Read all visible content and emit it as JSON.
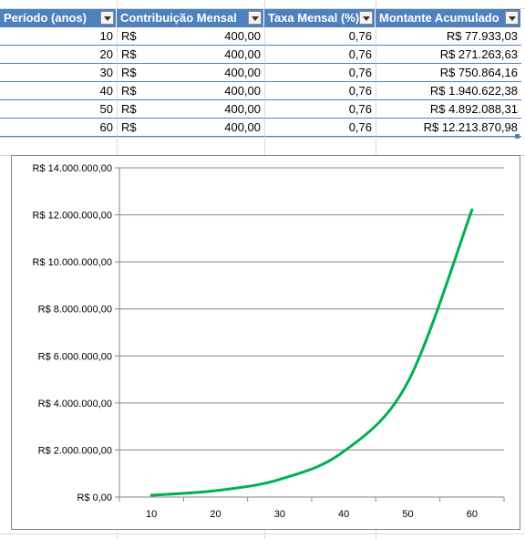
{
  "table": {
    "headers": [
      "Período (anos)",
      "Contribuição Mensal",
      "Taxa Mensal (%)",
      "Montante Acumulado"
    ],
    "rows": [
      {
        "periodo": "10",
        "moeda": "R$",
        "contribuicao": "400,00",
        "taxa": "0,76",
        "montante": "R$ 77.933,03"
      },
      {
        "periodo": "20",
        "moeda": "R$",
        "contribuicao": "400,00",
        "taxa": "0,76",
        "montante": "R$ 271.263,63"
      },
      {
        "periodo": "30",
        "moeda": "R$",
        "contribuicao": "400,00",
        "taxa": "0,76",
        "montante": "R$ 750.864,16"
      },
      {
        "periodo": "40",
        "moeda": "R$",
        "contribuicao": "400,00",
        "taxa": "0,76",
        "montante": "R$ 1.940.622,38"
      },
      {
        "periodo": "50",
        "moeda": "R$",
        "contribuicao": "400,00",
        "taxa": "0,76",
        "montante": "R$ 4.892.088,31"
      },
      {
        "periodo": "60",
        "moeda": "R$",
        "contribuicao": "400,00",
        "taxa": "0,76",
        "montante": "R$ 12.213.870,98"
      }
    ],
    "header_color": "#4f81bd",
    "dropdown_icon": "filter-dropdown-icon"
  },
  "chart_data": {
    "type": "line",
    "title": "",
    "xlabel": "",
    "ylabel": "",
    "categories": [
      "10",
      "20",
      "30",
      "40",
      "50",
      "60"
    ],
    "values": [
      77933.03,
      271263.63,
      750864.16,
      1940622.38,
      4892088.31,
      12213870.98
    ],
    "ylim": [
      0,
      14000000
    ],
    "y_ticks": [
      0,
      2000000,
      4000000,
      6000000,
      8000000,
      10000000,
      12000000,
      14000000
    ],
    "y_tick_labels": [
      "R$ 0,00",
      "R$ 2.000.000,00",
      "R$ 4.000.000,00",
      "R$ 6.000.000,00",
      "R$ 8.000.000,00",
      "R$ 10.000.000,00",
      "R$ 12.000.000,00",
      "R$ 14.000.000,00"
    ],
    "grid": true,
    "legend": "none",
    "line_color": "#00b050"
  }
}
